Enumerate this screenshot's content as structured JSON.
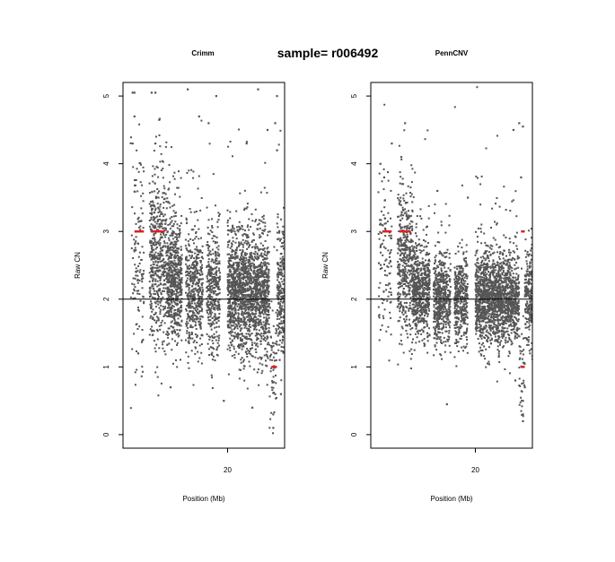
{
  "figure": {
    "title": "sample= r006492"
  },
  "chart_data": [
    {
      "type": "scatter",
      "title": "Crimm",
      "xlabel": "Position (Mb)",
      "ylabel": "Raw CN",
      "xlim": [
        14.5,
        23.0
      ],
      "ylim": [
        -0.2,
        5.2
      ],
      "x_ticks": [
        20
      ],
      "y_ticks": [
        0,
        1,
        2,
        3,
        4,
        5
      ],
      "grid": false,
      "legend": "none",
      "point_color": "#555555",
      "segment_color": "#dd2222",
      "reference_line": {
        "y": 2,
        "color": "#000000"
      },
      "segments": [
        {
          "x_start": 15.1,
          "x_end": 15.6,
          "y": 3
        },
        {
          "x_start": 16.0,
          "x_end": 16.7,
          "y": 3
        },
        {
          "x_start": 22.3,
          "x_end": 22.6,
          "y": 1
        }
      ],
      "point_clusters": [
        {
          "x_start": 14.9,
          "x_end": 15.6,
          "n": 130,
          "y_center": 2.6,
          "y_spread": 0.8
        },
        {
          "x_start": 15.9,
          "x_end": 16.8,
          "n": 480,
          "y_center": 2.6,
          "y_spread": 0.65
        },
        {
          "x_start": 16.8,
          "x_end": 17.6,
          "n": 600,
          "y_center": 2.25,
          "y_spread": 0.45
        },
        {
          "x_start": 17.8,
          "x_end": 18.7,
          "n": 480,
          "y_center": 2.1,
          "y_spread": 0.45
        },
        {
          "x_start": 18.9,
          "x_end": 19.6,
          "n": 360,
          "y_center": 2.1,
          "y_spread": 0.45
        },
        {
          "x_start": 20.0,
          "x_end": 20.7,
          "n": 560,
          "y_center": 2.1,
          "y_spread": 0.45
        },
        {
          "x_start": 20.7,
          "x_end": 21.5,
          "n": 620,
          "y_center": 2.05,
          "y_spread": 0.45
        },
        {
          "x_start": 21.5,
          "x_end": 22.2,
          "n": 520,
          "y_center": 2.05,
          "y_spread": 0.45
        },
        {
          "x_start": 22.2,
          "x_end": 22.6,
          "n": 60,
          "y_center": 1.0,
          "y_spread": 0.4
        },
        {
          "x_start": 22.6,
          "x_end": 23.0,
          "n": 220,
          "y_center": 2.1,
          "y_spread": 0.45
        }
      ],
      "outlier_points": [
        [
          15.0,
          5.05
        ],
        [
          15.1,
          5.05
        ],
        [
          16.0,
          5.05
        ],
        [
          16.2,
          5.05
        ],
        [
          17.9,
          5.1
        ],
        [
          19.4,
          5.0
        ],
        [
          21.6,
          5.1
        ],
        [
          22.6,
          5.0
        ],
        [
          15.1,
          4.7
        ],
        [
          16.4,
          4.65
        ],
        [
          18.5,
          4.7
        ],
        [
          19.0,
          4.6
        ],
        [
          22.1,
          4.5
        ],
        [
          22.5,
          4.6
        ],
        [
          15.0,
          4.3
        ],
        [
          16.2,
          4.3
        ],
        [
          21.0,
          4.3
        ],
        [
          22.6,
          4.2
        ],
        [
          22.4,
          0.1
        ],
        [
          22.4,
          0.3
        ],
        [
          22.5,
          0.6
        ],
        [
          17.0,
          0.7
        ],
        [
          19.8,
          0.5
        ],
        [
          15.3,
          1.2
        ],
        [
          21.3,
          0.4
        ],
        [
          22.8,
          0.6
        ]
      ]
    },
    {
      "type": "scatter",
      "title": "PennCNV",
      "xlabel": "Position (Mb)",
      "ylabel": "Raw CN",
      "xlim": [
        14.5,
        23.0
      ],
      "ylim": [
        -0.2,
        5.2
      ],
      "x_ticks": [
        20
      ],
      "y_ticks": [
        0,
        1,
        2,
        3,
        4,
        5
      ],
      "grid": false,
      "legend": "none",
      "point_color": "#555555",
      "segment_color": "#dd2222",
      "reference_line": {
        "y": 2,
        "color": "#000000"
      },
      "segments": [
        {
          "x_start": 15.1,
          "x_end": 15.6,
          "y": 3
        },
        {
          "x_start": 16.0,
          "x_end": 16.6,
          "y": 3
        },
        {
          "x_start": 22.4,
          "x_end": 22.6,
          "y": 3
        },
        {
          "x_start": 22.4,
          "x_end": 22.6,
          "y": 1
        }
      ],
      "point_clusters": [
        {
          "x_start": 14.9,
          "x_end": 15.6,
          "n": 110,
          "y_center": 2.6,
          "y_spread": 0.7
        },
        {
          "x_start": 15.9,
          "x_end": 16.7,
          "n": 420,
          "y_center": 2.55,
          "y_spread": 0.55
        },
        {
          "x_start": 16.7,
          "x_end": 17.6,
          "n": 600,
          "y_center": 2.1,
          "y_spread": 0.33
        },
        {
          "x_start": 17.8,
          "x_end": 18.7,
          "n": 520,
          "y_center": 2.0,
          "y_spread": 0.33
        },
        {
          "x_start": 18.9,
          "x_end": 19.6,
          "n": 380,
          "y_center": 2.0,
          "y_spread": 0.33
        },
        {
          "x_start": 20.0,
          "x_end": 20.7,
          "n": 560,
          "y_center": 2.0,
          "y_spread": 0.33
        },
        {
          "x_start": 20.7,
          "x_end": 21.5,
          "n": 600,
          "y_center": 2.0,
          "y_spread": 0.33
        },
        {
          "x_start": 21.5,
          "x_end": 22.3,
          "n": 500,
          "y_center": 2.0,
          "y_spread": 0.33
        },
        {
          "x_start": 22.3,
          "x_end": 22.6,
          "n": 40,
          "y_center": 1.0,
          "y_spread": 0.35
        },
        {
          "x_start": 22.6,
          "x_end": 23.0,
          "n": 200,
          "y_center": 2.05,
          "y_spread": 0.35
        }
      ],
      "outlier_points": [
        [
          15.0,
          4.0
        ],
        [
          15.2,
          3.8
        ],
        [
          15.6,
          4.3
        ],
        [
          16.3,
          4.6
        ],
        [
          16.1,
          4.1
        ],
        [
          22.0,
          4.5
        ],
        [
          22.3,
          4.6
        ],
        [
          22.5,
          4.55
        ],
        [
          22.4,
          3.8
        ],
        [
          22.5,
          0.2
        ],
        [
          22.5,
          0.3
        ],
        [
          22.5,
          0.5
        ],
        [
          22.6,
          0.7
        ],
        [
          18.5,
          0.45
        ],
        [
          22.1,
          0.8
        ],
        [
          19.6,
          3.5
        ],
        [
          18.0,
          3.6
        ]
      ]
    }
  ]
}
